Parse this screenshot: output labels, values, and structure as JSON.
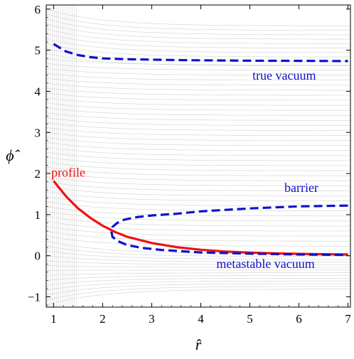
{
  "chart_data": {
    "type": "line",
    "title": "",
    "xlabel": "r̂",
    "ylabel": "ϕ̂",
    "xlim": [
      0.85,
      7.05
    ],
    "ylim": [
      -1.25,
      6.1
    ],
    "x_ticks": [
      1,
      2,
      3,
      4,
      5,
      6,
      7
    ],
    "y_ticks": [
      -1,
      0,
      1,
      2,
      3,
      4,
      5,
      6
    ],
    "grid": false,
    "background": "contour lines (light gray)",
    "colors": {
      "profile": "#ee1111",
      "vacuum_curves": "#1111cc",
      "contours": "#d0d0d0"
    },
    "series": [
      {
        "style": "solid",
        "x": [
          1.0,
          1.25,
          1.5,
          1.75,
          2.0,
          2.25,
          2.5,
          3.0,
          3.5,
          4.0,
          4.5,
          5.0,
          5.5,
          6.0,
          6.5,
          7.0
        ],
        "y": [
          1.82,
          1.45,
          1.15,
          0.92,
          0.73,
          0.58,
          0.46,
          0.31,
          0.21,
          0.145,
          0.1,
          0.075,
          0.058,
          0.045,
          0.037,
          0.03
        ]
      },
      {
        "style": "dashed",
        "x": [
          1.0,
          1.25,
          1.5,
          1.75,
          2.0,
          2.5,
          3.0,
          3.5,
          4.0,
          5.0,
          6.0,
          7.0
        ],
        "y": [
          5.15,
          4.97,
          4.88,
          4.83,
          4.8,
          4.78,
          4.77,
          4.76,
          4.755,
          4.745,
          4.74,
          4.735
        ]
      },
      {
        "style": "dashed",
        "x": [
          7.0,
          6.0,
          5.0,
          4.0,
          3.5,
          3.0,
          2.7,
          2.45,
          2.3,
          2.2,
          2.18,
          2.2,
          2.3,
          2.5,
          2.8,
          3.2,
          4.0,
          5.0,
          6.0,
          7.0
        ],
        "y": [
          1.22,
          1.2,
          1.15,
          1.08,
          1.02,
          0.98,
          0.94,
          0.88,
          0.8,
          0.7,
          0.58,
          0.46,
          0.36,
          0.26,
          0.19,
          0.14,
          0.08,
          0.05,
          0.03,
          0.02
        ]
      }
    ],
    "annotations": [
      {
        "text": "profile",
        "color": "#ee1111",
        "x": 1.3,
        "y": 1.92
      },
      {
        "text": "true vacuum",
        "color": "#1111cc",
        "x": 5.7,
        "y": 4.28
      },
      {
        "text": "barrier",
        "color": "#1111cc",
        "x": 6.05,
        "y": 1.55
      },
      {
        "text": "metastable vacuum",
        "color": "#1111cc",
        "x": 5.32,
        "y": -0.3
      }
    ]
  }
}
